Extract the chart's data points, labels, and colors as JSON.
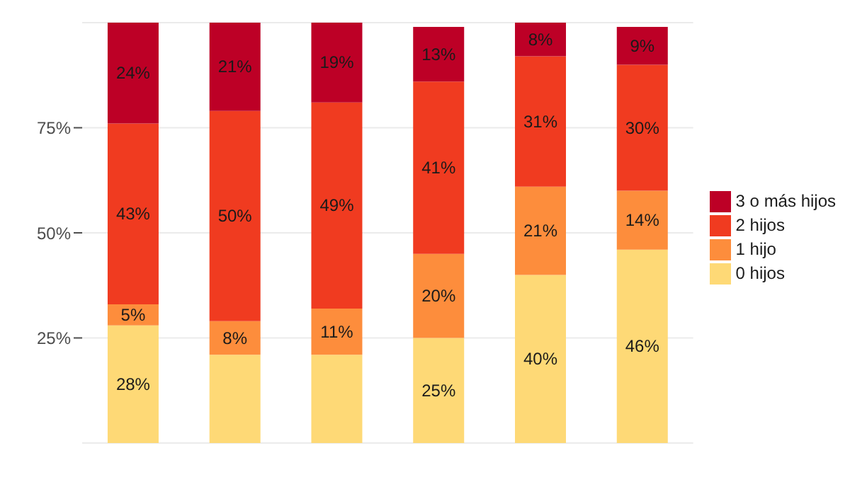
{
  "chart_data": {
    "type": "bar",
    "stacked": true,
    "categories": [
      null,
      null,
      null,
      null,
      null,
      null
    ],
    "series": [
      {
        "name": "0 hijos",
        "color": "#fed976",
        "values": [
          28,
          21,
          21,
          25,
          40,
          46
        ],
        "value_labels": [
          "28%",
          null,
          null,
          "25%",
          "40%",
          "46%"
        ]
      },
      {
        "name": "1 hijo",
        "color": "#fd8d3c",
        "values": [
          5,
          8,
          11,
          20,
          21,
          14
        ],
        "value_labels": [
          "5%",
          "8%",
          "11%",
          "20%",
          "21%",
          "14%"
        ]
      },
      {
        "name": "2 hijos",
        "color": "#f03b20",
        "values": [
          43,
          50,
          49,
          41,
          31,
          30
        ],
        "value_labels": [
          "43%",
          "50%",
          "49%",
          "41%",
          "31%",
          "30%"
        ]
      },
      {
        "name": "3 o más hijos",
        "color": "#bd0026",
        "values": [
          24,
          21,
          19,
          13,
          8,
          9
        ],
        "value_labels": [
          "24%",
          "21%",
          "19%",
          "13%",
          "8%",
          "9%"
        ]
      }
    ],
    "ylim": [
      0,
      100
    ],
    "yticks": [
      {
        "value": 25,
        "label": "25%"
      },
      {
        "value": 50,
        "label": "50%"
      },
      {
        "value": 75,
        "label": "75%"
      }
    ],
    "grid": "y",
    "legend": "right"
  }
}
